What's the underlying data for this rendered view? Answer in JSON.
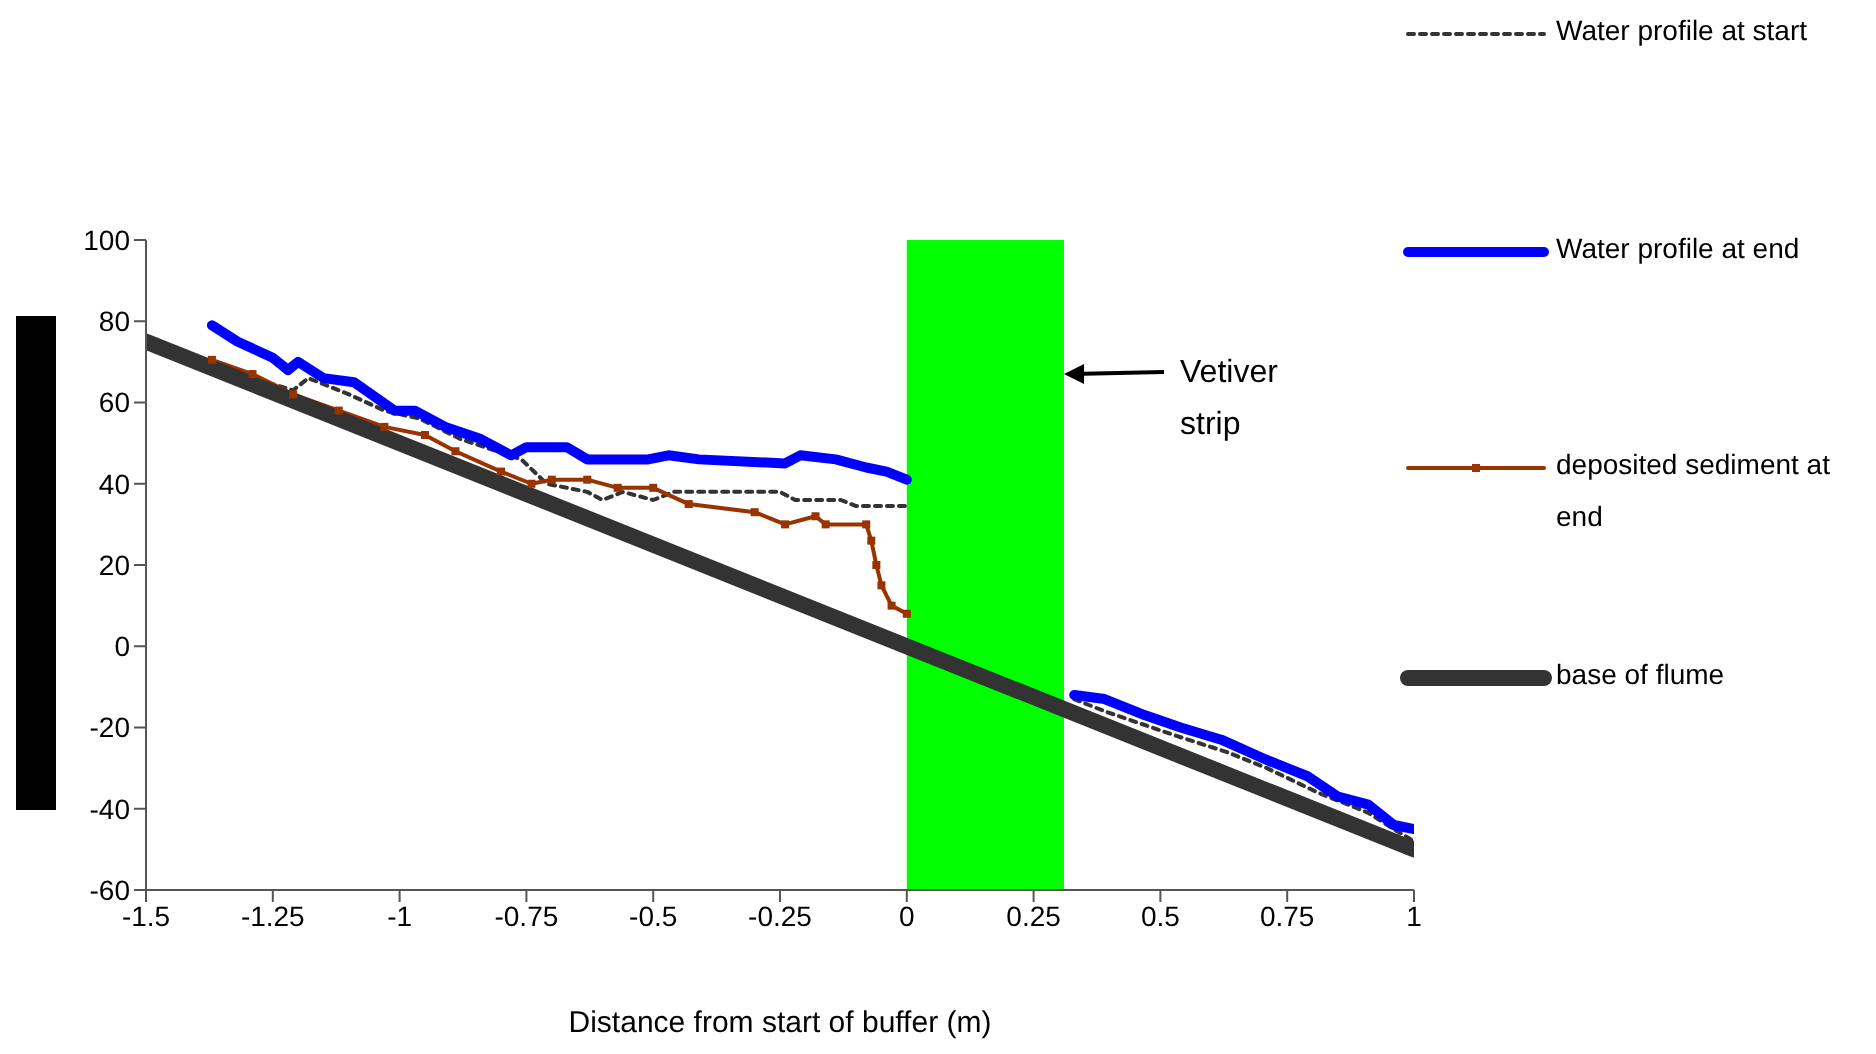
{
  "chart_data": {
    "type": "line",
    "xlabel": "Distance from start of buffer (m)",
    "xlim": [
      -1.5,
      1
    ],
    "xticks": [
      -1.5,
      -1.25,
      -1,
      -0.75,
      -0.5,
      -0.25,
      0,
      0.25,
      0.5,
      0.75,
      1
    ],
    "ylim": [
      -60,
      100
    ],
    "yticks": [
      -60,
      -40,
      -20,
      0,
      20,
      40,
      60,
      80,
      100
    ],
    "grid": false,
    "legend": "right",
    "marker": "none",
    "series": [
      {
        "name": "Water profile at start",
        "color": "#333333",
        "line_style": "dotted",
        "x": [
          -1.37,
          -1.29,
          -1.21,
          -1.18,
          -1.1,
          -1.03,
          -0.96,
          -0.88,
          -0.76,
          -0.71,
          -0.63,
          -0.6,
          -0.56,
          -0.5,
          -0.46,
          -0.25,
          -0.22,
          -0.13,
          -0.1,
          0,
          0.16,
          0.33,
          0.39,
          0.53,
          0.63,
          0.71,
          0.81,
          0.91,
          0.96,
          1
        ],
        "values": [
          70,
          66,
          63,
          66,
          62,
          58,
          56,
          51,
          46,
          40,
          38,
          36,
          38,
          36,
          38,
          38,
          36,
          36,
          34.5,
          34.5,
          null,
          -13,
          -16,
          -22,
          -26,
          -30,
          -36,
          -41,
          -45,
          -48
        ]
      },
      {
        "name": "Water profile at end",
        "color": "#0000ff",
        "line_style": "solid",
        "x": [
          -1.37,
          -1.32,
          -1.25,
          -1.22,
          -1.2,
          -1.15,
          -1.09,
          -1.01,
          -0.97,
          -0.91,
          -0.84,
          -0.78,
          -0.75,
          -0.67,
          -0.63,
          -0.51,
          -0.47,
          -0.41,
          -0.24,
          -0.21,
          -0.14,
          -0.08,
          -0.04,
          0,
          0.16,
          0.33,
          0.39,
          0.47,
          0.54,
          0.62,
          0.71,
          0.79,
          0.85,
          0.91,
          0.96,
          1
        ],
        "values": [
          79,
          75,
          71,
          68,
          70,
          66,
          65,
          58,
          58,
          54,
          51,
          47,
          49,
          49,
          46,
          46,
          47,
          46,
          45,
          47,
          46,
          44,
          43,
          41,
          null,
          -12,
          -13,
          -17,
          -20,
          -23,
          -28,
          -32,
          -37,
          -39,
          -44,
          -45
        ]
      },
      {
        "name": "deposited sediment at end",
        "color": "#993300",
        "line_style": "solid",
        "marker": "square",
        "x": [
          -1.37,
          -1.29,
          -1.21,
          -1.12,
          -1.03,
          -0.95,
          -0.89,
          -0.8,
          -0.74,
          -0.7,
          -0.63,
          -0.57,
          -0.5,
          -0.43,
          -0.3,
          -0.24,
          -0.18,
          -0.16,
          -0.08,
          -0.07,
          -0.06,
          -0.05,
          -0.03,
          0
        ],
        "values": [
          70.5,
          67,
          62,
          58,
          54,
          52,
          48,
          43,
          40,
          41,
          41,
          39,
          39,
          35,
          33,
          30,
          32,
          30,
          30,
          26,
          20,
          15,
          10,
          8
        ]
      },
      {
        "name": "base of flume",
        "color": "#333333",
        "line_style": "solid",
        "x": [
          -1.5,
          1
        ],
        "values": [
          75,
          -50
        ]
      }
    ],
    "bands": [
      {
        "axis": "x",
        "from": 0,
        "to": 0.31,
        "color": "#00ff00"
      }
    ],
    "annotations": [
      {
        "text": "Vetiver strip",
        "x": 0.31,
        "y": 67
      }
    ]
  }
}
